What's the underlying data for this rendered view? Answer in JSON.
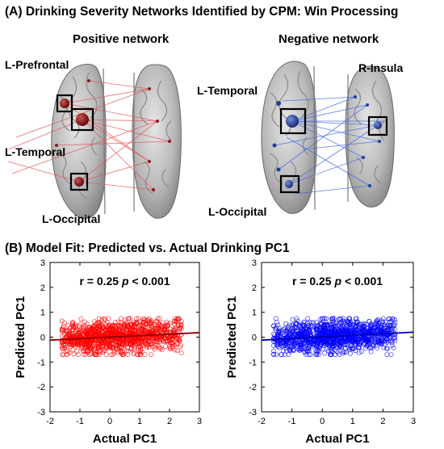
{
  "panel_a": {
    "title": "(A) Drinking Severity Networks Identified by CPM: Win Processing",
    "positive": {
      "title": "Positive network",
      "labels": [
        "L-Prefrontal",
        "L-Temporal",
        "L-Occipital"
      ],
      "edge_color": "#e25555",
      "node_color": "#8b1a1a"
    },
    "negative": {
      "title": "Negative network",
      "labels": [
        "L-Temporal",
        "R-Insula",
        "L-Occipital"
      ],
      "edge_color": "#4169e1",
      "node_color": "#1f3f99"
    }
  },
  "panel_b": {
    "title": "(B) Model Fit: Predicted vs. Actual Drinking PC1"
  },
  "chart_data": [
    {
      "type": "scatter",
      "title": "",
      "xlabel": "Actual PC1",
      "ylabel": "Predicted PC1",
      "xlim": [
        -2,
        3
      ],
      "ylim": [
        -3,
        3
      ],
      "xticks": [
        -2,
        -1,
        0,
        1,
        2,
        3
      ],
      "yticks": [
        -3,
        -2,
        -1,
        0,
        1,
        2,
        3
      ],
      "annotation": {
        "r": "r = 0.25",
        "p_label": "p",
        "p_value": "< 0.001"
      },
      "marker_color": "#ff0000",
      "fit_line": {
        "x": [
          -2,
          3
        ],
        "y": [
          -0.12,
          0.18
        ],
        "color": "#8b0000"
      },
      "point_cloud": {
        "x_range": [
          -1.6,
          2.4
        ],
        "y_range": [
          -0.7,
          0.75
        ],
        "approx_n": 1200
      }
    },
    {
      "type": "scatter",
      "title": "",
      "xlabel": "Actual PC1",
      "ylabel": "Predicted PC1",
      "xlim": [
        -2,
        3
      ],
      "ylim": [
        -3,
        3
      ],
      "xticks": [
        -2,
        -1,
        0,
        1,
        2,
        3
      ],
      "yticks": [
        -3,
        -2,
        -1,
        0,
        1,
        2,
        3
      ],
      "annotation": {
        "r": "r = 0.25",
        "p_label": "p",
        "p_value": "< 0.001"
      },
      "marker_color": "#0000ff",
      "fit_line": {
        "x": [
          -2,
          3
        ],
        "y": [
          -0.12,
          0.2
        ],
        "color": "#0000aa"
      },
      "point_cloud": {
        "x_range": [
          -1.6,
          2.4
        ],
        "y_range": [
          -0.7,
          0.75
        ],
        "approx_n": 1200
      }
    }
  ]
}
